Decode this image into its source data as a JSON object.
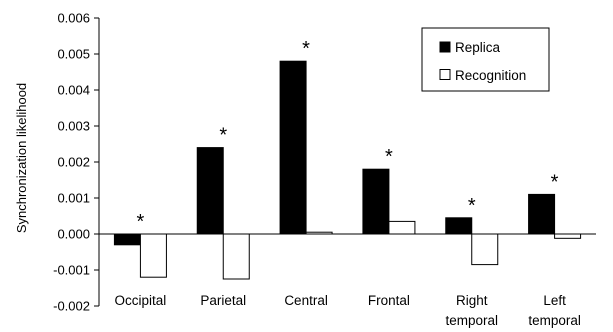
{
  "chart_data": {
    "type": "bar",
    "title": "",
    "xlabel": "",
    "ylabel": "Synchronization likelihood",
    "ylim": [
      -0.002,
      0.006
    ],
    "yticks": [
      "0.006",
      "0.005",
      "0.004",
      "0.003",
      "0.002",
      "0.001",
      "0.000",
      "-0.001",
      "-0.002"
    ],
    "categories": [
      [
        "Occipital"
      ],
      [
        "Parietal"
      ],
      [
        "Central"
      ],
      [
        "Frontal"
      ],
      [
        "Right",
        "temporal"
      ],
      [
        "Left",
        "temporal"
      ]
    ],
    "series": [
      {
        "name": "Replica",
        "color": "#000000",
        "fill": "solid",
        "values": [
          -0.0003,
          0.0024,
          0.0048,
          0.0018,
          0.00045,
          0.0011
        ]
      },
      {
        "name": "Recognition",
        "color": "#ffffff",
        "fill": "outline",
        "values": [
          -0.0012,
          -0.00125,
          5e-05,
          0.00035,
          -0.00085,
          -0.00012
        ]
      }
    ],
    "annotations": [
      "*",
      "*",
      "*",
      "*",
      "*",
      "*"
    ],
    "grid": false,
    "legend_position": "top-right"
  }
}
